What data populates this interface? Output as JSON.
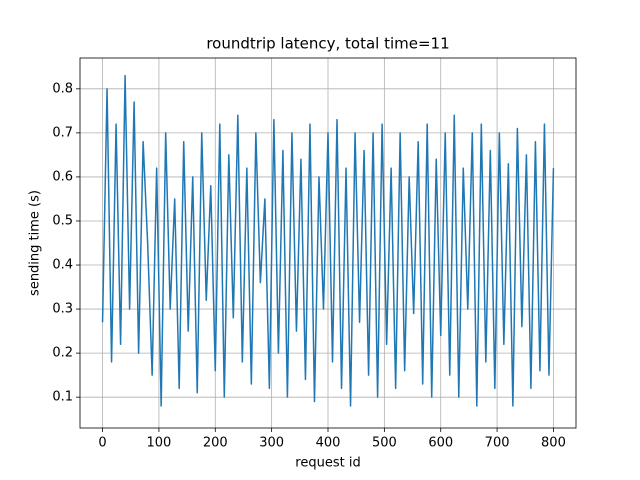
{
  "chart_data": {
    "type": "line",
    "title": "roundtrip latency, total time=11",
    "xlabel": "request id",
    "ylabel": "sending time (s)",
    "xlim": [
      -40,
      840
    ],
    "ylim": [
      0.03,
      0.87
    ],
    "xticks": [
      0,
      100,
      200,
      300,
      400,
      500,
      600,
      700,
      800
    ],
    "yticks": [
      0.1,
      0.2,
      0.3,
      0.4,
      0.5,
      0.6,
      0.7,
      0.8
    ],
    "grid": true,
    "x": [
      0,
      8,
      16,
      24,
      32,
      40,
      48,
      56,
      64,
      72,
      80,
      88,
      96,
      104,
      112,
      120,
      128,
      136,
      144,
      152,
      160,
      168,
      176,
      184,
      192,
      200,
      208,
      216,
      224,
      232,
      240,
      248,
      256,
      264,
      272,
      280,
      288,
      296,
      304,
      312,
      320,
      328,
      336,
      344,
      352,
      360,
      368,
      376,
      384,
      392,
      400,
      408,
      416,
      424,
      432,
      440,
      448,
      456,
      464,
      472,
      480,
      488,
      496,
      504,
      512,
      520,
      528,
      536,
      544,
      552,
      560,
      568,
      576,
      584,
      592,
      600,
      608,
      616,
      624,
      632,
      640,
      648,
      656,
      664,
      672,
      680,
      688,
      696,
      704,
      712,
      720,
      728,
      736,
      744,
      752,
      760,
      768,
      776,
      784,
      792,
      800
    ],
    "series": [
      {
        "color": "#1f77b4",
        "values": [
          0.27,
          0.8,
          0.18,
          0.72,
          0.22,
          0.83,
          0.3,
          0.77,
          0.2,
          0.68,
          0.45,
          0.15,
          0.62,
          0.08,
          0.7,
          0.3,
          0.55,
          0.12,
          0.68,
          0.25,
          0.6,
          0.11,
          0.7,
          0.32,
          0.58,
          0.16,
          0.72,
          0.1,
          0.65,
          0.28,
          0.74,
          0.18,
          0.62,
          0.13,
          0.7,
          0.36,
          0.55,
          0.12,
          0.73,
          0.2,
          0.66,
          0.1,
          0.7,
          0.25,
          0.64,
          0.14,
          0.72,
          0.09,
          0.6,
          0.3,
          0.7,
          0.18,
          0.73,
          0.12,
          0.62,
          0.08,
          0.7,
          0.27,
          0.66,
          0.15,
          0.7,
          0.1,
          0.72,
          0.22,
          0.62,
          0.12,
          0.7,
          0.16,
          0.6,
          0.29,
          0.68,
          0.13,
          0.72,
          0.1,
          0.64,
          0.24,
          0.7,
          0.15,
          0.74,
          0.1,
          0.62,
          0.3,
          0.7,
          0.08,
          0.72,
          0.18,
          0.66,
          0.12,
          0.7,
          0.22,
          0.63,
          0.08,
          0.71,
          0.26,
          0.65,
          0.12,
          0.68,
          0.16,
          0.72,
          0.15,
          0.62
        ]
      }
    ]
  }
}
